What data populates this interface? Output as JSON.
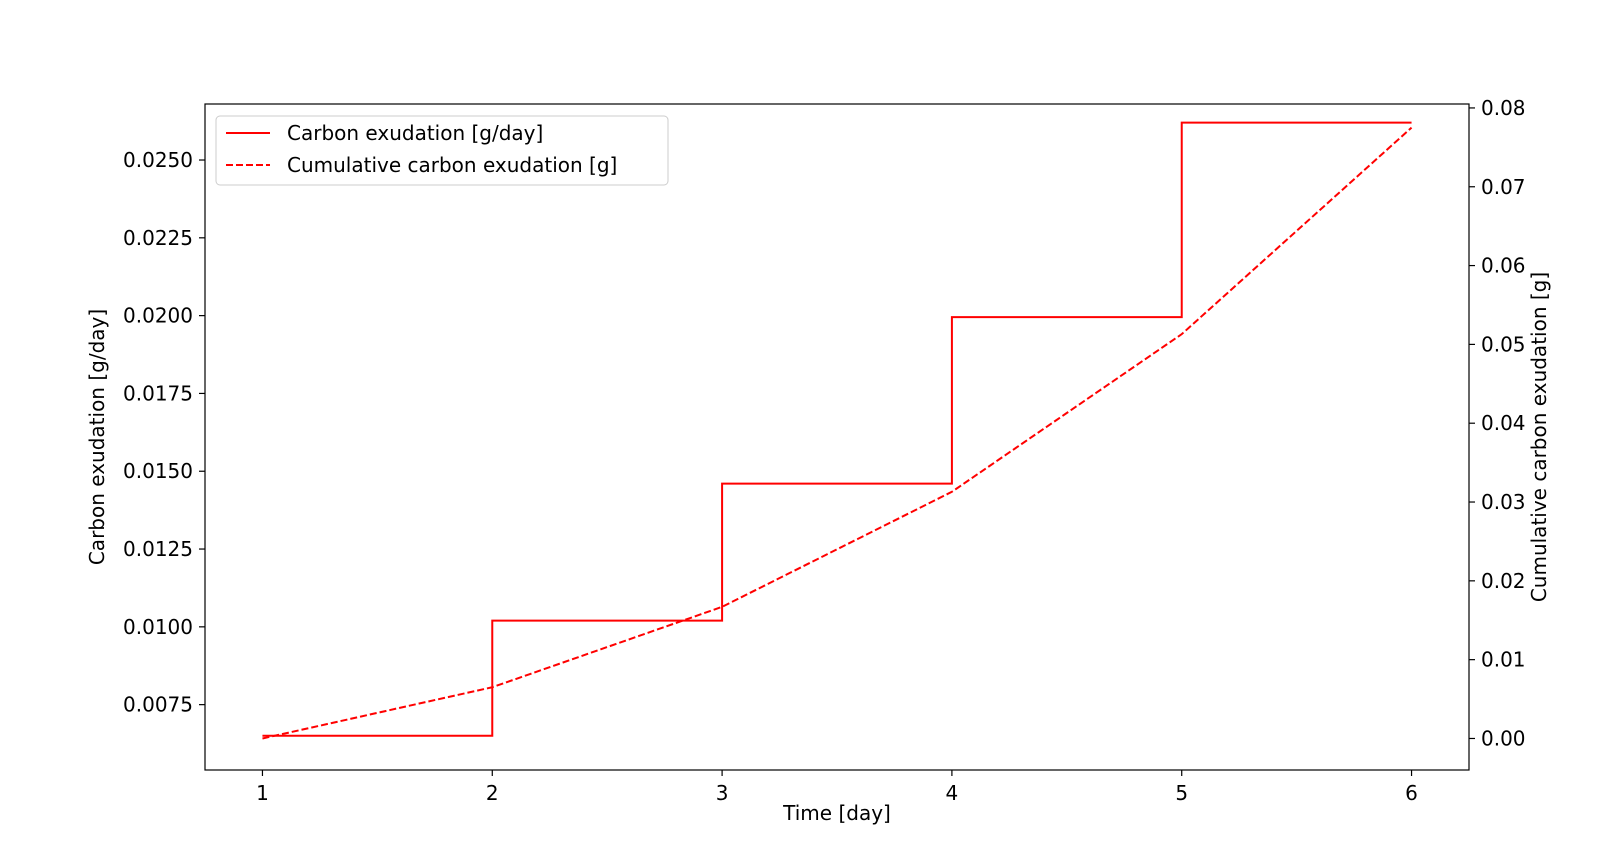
{
  "chart_data": {
    "type": "line",
    "xlabel": "Time [day]",
    "ylabel_left": "Carbon exudation [g/day]",
    "ylabel_right": "Cumulative carbon exudation [g]",
    "x_ticks": [
      1,
      2,
      3,
      4,
      5,
      6
    ],
    "x_tick_labels": [
      "1",
      "2",
      "3",
      "4",
      "5",
      "6"
    ],
    "y_left_ticks": [
      0.0075,
      0.01,
      0.0125,
      0.015,
      0.0175,
      0.02,
      0.0225,
      0.025
    ],
    "y_left_tick_labels": [
      "0.0075",
      "0.0100",
      "0.0125",
      "0.0150",
      "0.0175",
      "0.0200",
      "0.0225",
      "0.0250"
    ],
    "y_right_ticks": [
      0,
      0.01,
      0.02,
      0.03,
      0.04,
      0.05,
      0.06,
      0.07,
      0.08
    ],
    "y_right_tick_labels": [
      "0.00",
      "0.01",
      "0.02",
      "0.03",
      "0.04",
      "0.05",
      "0.06",
      "0.07",
      "0.08"
    ],
    "xlim": [
      0.75,
      6.25
    ],
    "ylim_left": [
      0.0054,
      0.0268
    ],
    "ylim_right": [
      -0.004,
      0.0805
    ],
    "grid": false,
    "legend_position": "upper-left",
    "color": "#ff0000",
    "series": [
      {
        "name": "Carbon exudation [g/day]",
        "axis": "left",
        "style": "solid",
        "x": [
          1,
          2,
          2,
          3,
          3,
          4,
          4,
          5,
          5,
          6
        ],
        "y": [
          0.0065,
          0.0065,
          0.0102,
          0.0102,
          0.0146,
          0.0146,
          0.01995,
          0.01995,
          0.0262,
          0.0262
        ]
      },
      {
        "name": "Cumulative carbon exudation [g]",
        "axis": "right",
        "style": "dashed",
        "x": [
          1,
          2,
          3,
          4,
          5,
          6
        ],
        "y": [
          0.0,
          0.0065,
          0.0167,
          0.0313,
          0.0513,
          0.0775
        ]
      }
    ]
  }
}
